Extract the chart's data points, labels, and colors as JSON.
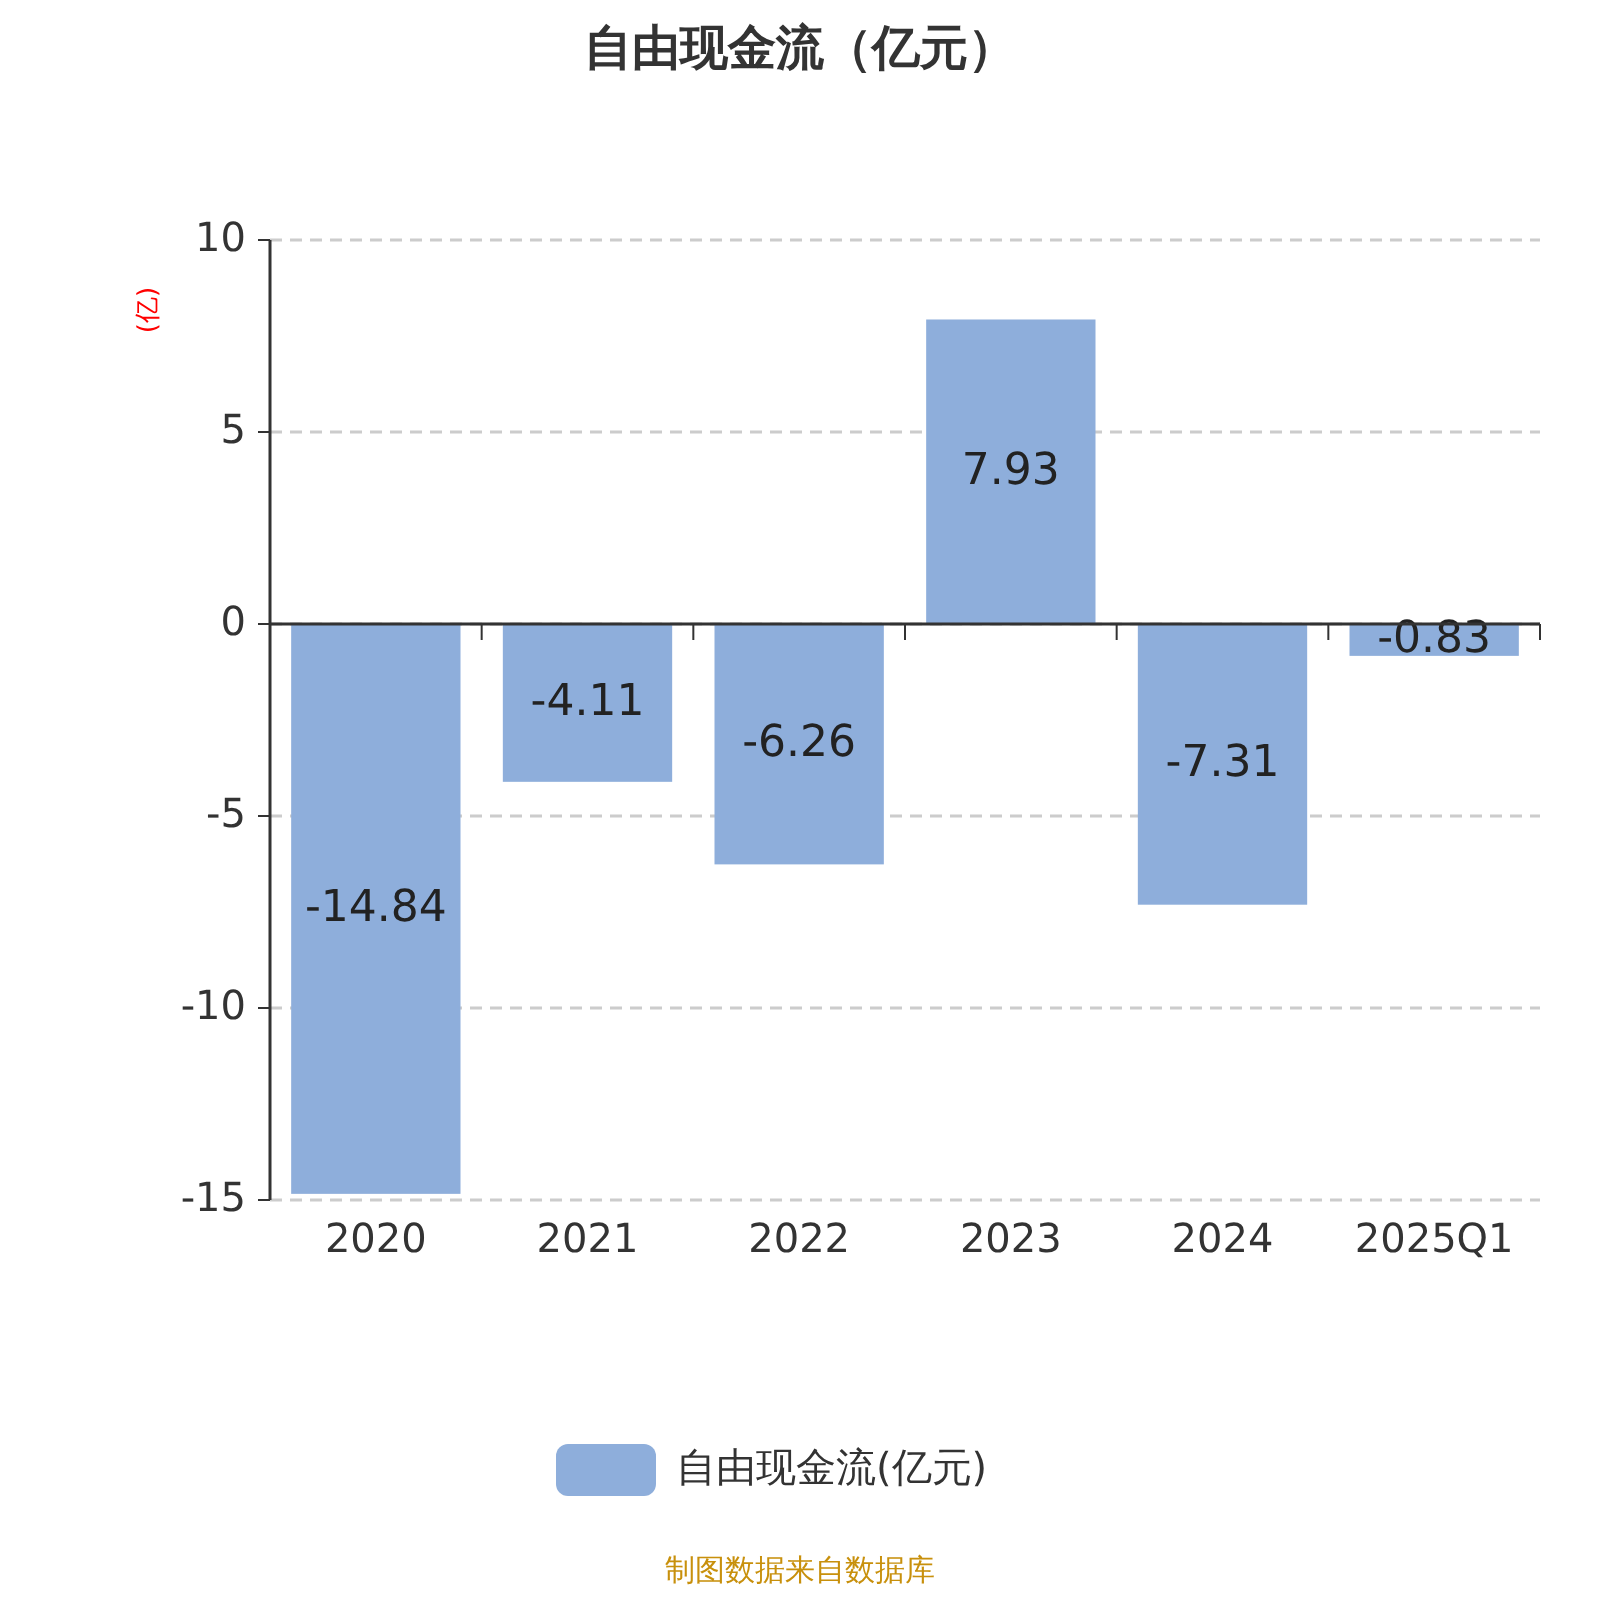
{
  "chart_data": {
    "type": "bar",
    "title": "自由现金流（亿元）",
    "ylabel": "(亿)",
    "categories": [
      "2020",
      "2021",
      "2022",
      "2023",
      "2024",
      "2025Q1"
    ],
    "series": [
      {
        "name": "自由现金流(亿元)",
        "color": "#8eaedb",
        "values": [
          -14.84,
          -4.11,
          -6.26,
          7.93,
          -7.31,
          -0.83
        ]
      }
    ],
    "ylim": [
      -15,
      10
    ],
    "yticks": [
      -15,
      -10,
      -5,
      0,
      5,
      10
    ],
    "grid": "y",
    "legend": "bottom",
    "data_labels": true,
    "annotations": [
      "制图数据来自数据库"
    ]
  }
}
